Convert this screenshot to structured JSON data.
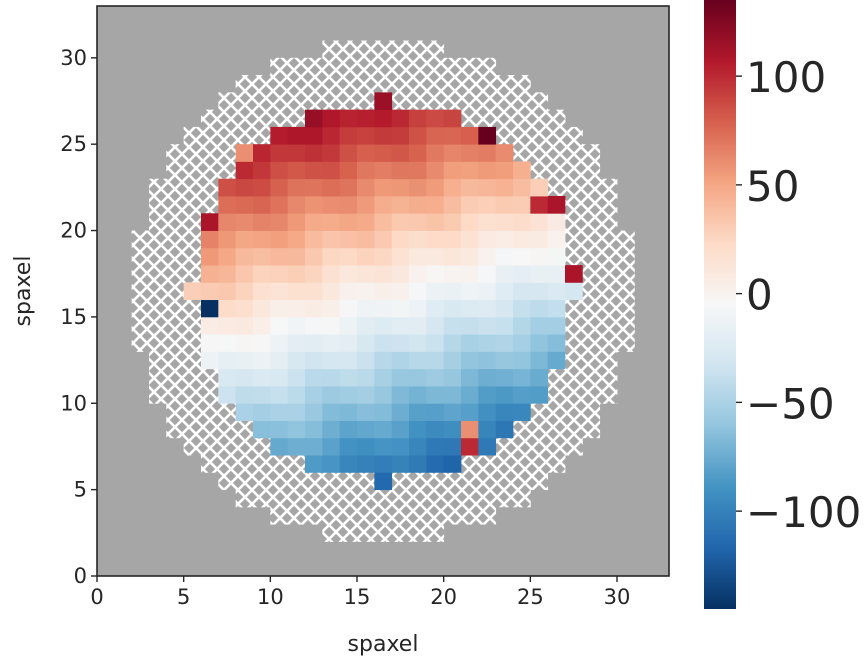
{
  "chart_data": {
    "type": "heatmap",
    "title": "",
    "xlabel": "spaxel",
    "ylabel": "spaxel",
    "xlim": [
      0,
      33
    ],
    "ylim": [
      0,
      33
    ],
    "xticks": [
      0,
      5,
      10,
      15,
      20,
      25,
      30
    ],
    "yticks": [
      0,
      5,
      10,
      15,
      20,
      25,
      30
    ],
    "colormap": "RdBu_r",
    "colorbar": {
      "vmin": -145,
      "vmax": 135,
      "ticks": [
        100,
        50,
        0,
        -50,
        -100
      ],
      "tick_labels": [
        "100",
        "50",
        "0",
        "−50",
        "−100"
      ]
    },
    "background_color": "#a6a6a6",
    "hatch_region": {
      "description_rows_y": [
        3,
        30
      ]
    },
    "z_model": {
      "a": -40,
      "b": 55,
      "c": 5,
      "outer_radius": 14.5,
      "valid_radius": 11
    },
    "outliers": [
      {
        "x": 6,
        "y": 20,
        "value": 110
      },
      {
        "x": 6,
        "y": 15,
        "value": -145
      },
      {
        "x": 22,
        "y": 25,
        "value": 135
      },
      {
        "x": 8,
        "y": 24,
        "value": 60
      },
      {
        "x": 21,
        "y": 7,
        "value": 100
      },
      {
        "x": 21,
        "y": 8,
        "value": 60
      },
      {
        "x": 15,
        "y": 6,
        "value": -100
      },
      {
        "x": 27,
        "y": 17,
        "value": 110
      },
      {
        "x": 26,
        "y": 21,
        "value": 110
      },
      {
        "x": 25,
        "y": 21,
        "value": 100
      }
    ]
  }
}
